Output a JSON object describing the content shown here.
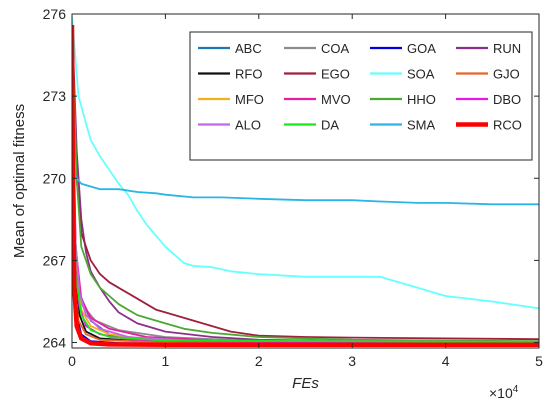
{
  "chart_data": {
    "type": "line",
    "xlabel": "FEs",
    "ylabel": "Mean of optimal fitness",
    "x_multiplier_label": "×10",
    "x_multiplier_exp": "4",
    "xlim": [
      0,
      50000
    ],
    "ylim": [
      263.8,
      276
    ],
    "xticks": [
      0,
      10000,
      20000,
      30000,
      40000,
      50000
    ],
    "xtick_labels": [
      "0",
      "1",
      "2",
      "3",
      "4",
      "5"
    ],
    "yticks": [
      264,
      267,
      270,
      273,
      276
    ],
    "ytick_labels": [
      "264",
      "267",
      "270",
      "273",
      "276"
    ],
    "grid": false,
    "legend_position": "top-right",
    "series": [
      {
        "name": "ABC",
        "color": "#1f77b4",
        "width": 1.8,
        "points": [
          [
            0,
            275.5
          ],
          [
            300,
            268
          ],
          [
            800,
            265.8
          ],
          [
            2000,
            264.8
          ],
          [
            4000,
            264.3
          ],
          [
            8000,
            264.08
          ],
          [
            20000,
            264.02
          ],
          [
            50000,
            264.0
          ]
        ]
      },
      {
        "name": "COA",
        "color": "#8c8c8c",
        "width": 1.8,
        "points": [
          [
            0,
            275
          ],
          [
            400,
            267
          ],
          [
            1000,
            265.4
          ],
          [
            2500,
            264.8
          ],
          [
            5000,
            264.45
          ],
          [
            10000,
            264.2
          ],
          [
            20000,
            264.05
          ],
          [
            50000,
            264.0
          ]
        ]
      },
      {
        "name": "GOA",
        "color": "#0000e6",
        "width": 1.8,
        "points": [
          [
            0,
            275.8
          ],
          [
            200,
            267
          ],
          [
            500,
            265
          ],
          [
            1000,
            264.3
          ],
          [
            2000,
            264.05
          ],
          [
            5000,
            263.98
          ],
          [
            50000,
            263.95
          ]
        ]
      },
      {
        "name": "RUN",
        "color": "#8b2f8b",
        "width": 1.8,
        "points": [
          [
            0,
            275.8
          ],
          [
            500,
            271
          ],
          [
            1000,
            268.5
          ],
          [
            1500,
            267.3
          ],
          [
            2000,
            266.6
          ],
          [
            3000,
            266
          ],
          [
            4000,
            265.5
          ],
          [
            5000,
            265.1
          ],
          [
            7000,
            264.7
          ],
          [
            10000,
            264.4
          ],
          [
            15000,
            264.2
          ],
          [
            20000,
            264.1
          ],
          [
            30000,
            264.05
          ],
          [
            50000,
            264.02
          ]
        ]
      },
      {
        "name": "RFO",
        "color": "#111111",
        "width": 1.8,
        "points": [
          [
            0,
            275.5
          ],
          [
            300,
            267
          ],
          [
            800,
            265
          ],
          [
            1500,
            264.4
          ],
          [
            3000,
            264.15
          ],
          [
            8000,
            264.03
          ],
          [
            50000,
            263.98
          ]
        ]
      },
      {
        "name": "EGO",
        "color": "#a01f3c",
        "width": 1.8,
        "points": [
          [
            0,
            275.8
          ],
          [
            500,
            270
          ],
          [
            1000,
            268
          ],
          [
            2000,
            267
          ],
          [
            3000,
            266.5
          ],
          [
            4000,
            266.2
          ],
          [
            5000,
            266
          ],
          [
            6000,
            265.8
          ],
          [
            7000,
            265.6
          ],
          [
            8000,
            265.4
          ],
          [
            9000,
            265.2
          ],
          [
            10000,
            265.1
          ],
          [
            11000,
            265
          ],
          [
            13000,
            264.8
          ],
          [
            15000,
            264.6
          ],
          [
            17000,
            264.4
          ],
          [
            20000,
            264.25
          ],
          [
            25000,
            264.2
          ],
          [
            30000,
            264.18
          ],
          [
            40000,
            264.15
          ],
          [
            50000,
            264.12
          ]
        ]
      },
      {
        "name": "SOA",
        "color": "#66ffff",
        "width": 1.8,
        "points": [
          [
            0,
            275.9
          ],
          [
            700,
            273
          ],
          [
            1500,
            272
          ],
          [
            2000,
            271.4
          ],
          [
            3000,
            270.8
          ],
          [
            4000,
            270.3
          ],
          [
            5000,
            269.8
          ],
          [
            6000,
            269.4
          ],
          [
            7000,
            268.8
          ],
          [
            8000,
            268.3
          ],
          [
            9000,
            267.9
          ],
          [
            10000,
            267.5
          ],
          [
            11000,
            267.2
          ],
          [
            12000,
            266.9
          ],
          [
            13000,
            266.8
          ],
          [
            15000,
            266.75
          ],
          [
            17000,
            266.6
          ],
          [
            20000,
            266.5
          ],
          [
            25000,
            266.4
          ],
          [
            30000,
            266.4
          ],
          [
            33000,
            266.4
          ],
          [
            35000,
            266.2
          ],
          [
            38000,
            265.9
          ],
          [
            40000,
            265.7
          ],
          [
            45000,
            265.5
          ],
          [
            48000,
            265.35
          ],
          [
            50000,
            265.25
          ]
        ]
      },
      {
        "name": "GJO",
        "color": "#e8652b",
        "width": 1.8,
        "points": [
          [
            0,
            275
          ],
          [
            300,
            266
          ],
          [
            700,
            264.8
          ],
          [
            1500,
            264.3
          ],
          [
            3000,
            264.1
          ],
          [
            8000,
            264.03
          ],
          [
            50000,
            264.0
          ]
        ]
      },
      {
        "name": "MFO",
        "color": "#f2b01c",
        "width": 1.8,
        "points": [
          [
            0,
            274.5
          ],
          [
            400,
            267
          ],
          [
            1000,
            265.2
          ],
          [
            2000,
            264.6
          ],
          [
            4000,
            264.3
          ],
          [
            8000,
            264.12
          ],
          [
            20000,
            264.05
          ],
          [
            50000,
            264.02
          ]
        ]
      },
      {
        "name": "MVO",
        "color": "#e61ea0",
        "width": 1.8,
        "points": [
          [
            0,
            275
          ],
          [
            400,
            267.5
          ],
          [
            1000,
            265.6
          ],
          [
            2000,
            264.9
          ],
          [
            4000,
            264.5
          ],
          [
            8000,
            264.2
          ],
          [
            15000,
            264.08
          ],
          [
            30000,
            264.03
          ],
          [
            50000,
            264.01
          ]
        ]
      },
      {
        "name": "HHO",
        "color": "#4ca833",
        "width": 1.8,
        "points": [
          [
            0,
            275.5
          ],
          [
            500,
            270
          ],
          [
            1000,
            267.5
          ],
          [
            2000,
            266.5
          ],
          [
            3000,
            266
          ],
          [
            4000,
            265.7
          ],
          [
            5000,
            265.4
          ],
          [
            6000,
            265.2
          ],
          [
            7000,
            265
          ],
          [
            8000,
            264.9
          ],
          [
            10000,
            264.7
          ],
          [
            12000,
            264.5
          ],
          [
            15000,
            264.35
          ],
          [
            20000,
            264.2
          ],
          [
            30000,
            264.1
          ],
          [
            50000,
            264.05
          ]
        ]
      },
      {
        "name": "DBO",
        "color": "#e619e6",
        "width": 1.8,
        "points": [
          [
            0,
            275.2
          ],
          [
            300,
            267
          ],
          [
            800,
            265.3
          ],
          [
            1500,
            264.6
          ],
          [
            3000,
            264.3
          ],
          [
            6000,
            264.12
          ],
          [
            12000,
            264.05
          ],
          [
            50000,
            264.0
          ]
        ]
      },
      {
        "name": "ALO",
        "color": "#c466e6",
        "width": 1.8,
        "points": [
          [
            0,
            274.8
          ],
          [
            300,
            268
          ],
          [
            800,
            265.8
          ],
          [
            1500,
            265
          ],
          [
            3000,
            264.5
          ],
          [
            6000,
            264.2
          ],
          [
            12000,
            264.08
          ],
          [
            50000,
            264.02
          ]
        ]
      },
      {
        "name": "DA",
        "color": "#19e619",
        "width": 1.8,
        "points": [
          [
            0,
            275.5
          ],
          [
            400,
            266.5
          ],
          [
            1000,
            265
          ],
          [
            2000,
            264.45
          ],
          [
            4000,
            264.2
          ],
          [
            10000,
            264.07
          ],
          [
            50000,
            264.02
          ]
        ]
      },
      {
        "name": "SMA",
        "color": "#2bb5e6",
        "width": 1.8,
        "points": [
          [
            0,
            270.3
          ],
          [
            500,
            270
          ],
          [
            1000,
            269.8
          ],
          [
            2000,
            269.7
          ],
          [
            3000,
            269.6
          ],
          [
            5000,
            269.6
          ],
          [
            7000,
            269.5
          ],
          [
            9000,
            269.45
          ],
          [
            10000,
            269.4
          ],
          [
            13000,
            269.3
          ],
          [
            16000,
            269.3
          ],
          [
            20000,
            269.25
          ],
          [
            25000,
            269.2
          ],
          [
            30000,
            269.2
          ],
          [
            33000,
            269.15
          ],
          [
            37000,
            269.1
          ],
          [
            40000,
            269.1
          ],
          [
            45000,
            269.05
          ],
          [
            50000,
            269.05
          ]
        ]
      },
      {
        "name": "RCO",
        "color": "#ff0000",
        "width": 4.5,
        "points": [
          [
            0,
            275.6
          ],
          [
            100,
            270
          ],
          [
            250,
            266
          ],
          [
            500,
            264.6
          ],
          [
            1000,
            264.15
          ],
          [
            2000,
            263.97
          ],
          [
            4000,
            263.93
          ],
          [
            10000,
            263.92
          ],
          [
            50000,
            263.92
          ]
        ]
      }
    ]
  }
}
